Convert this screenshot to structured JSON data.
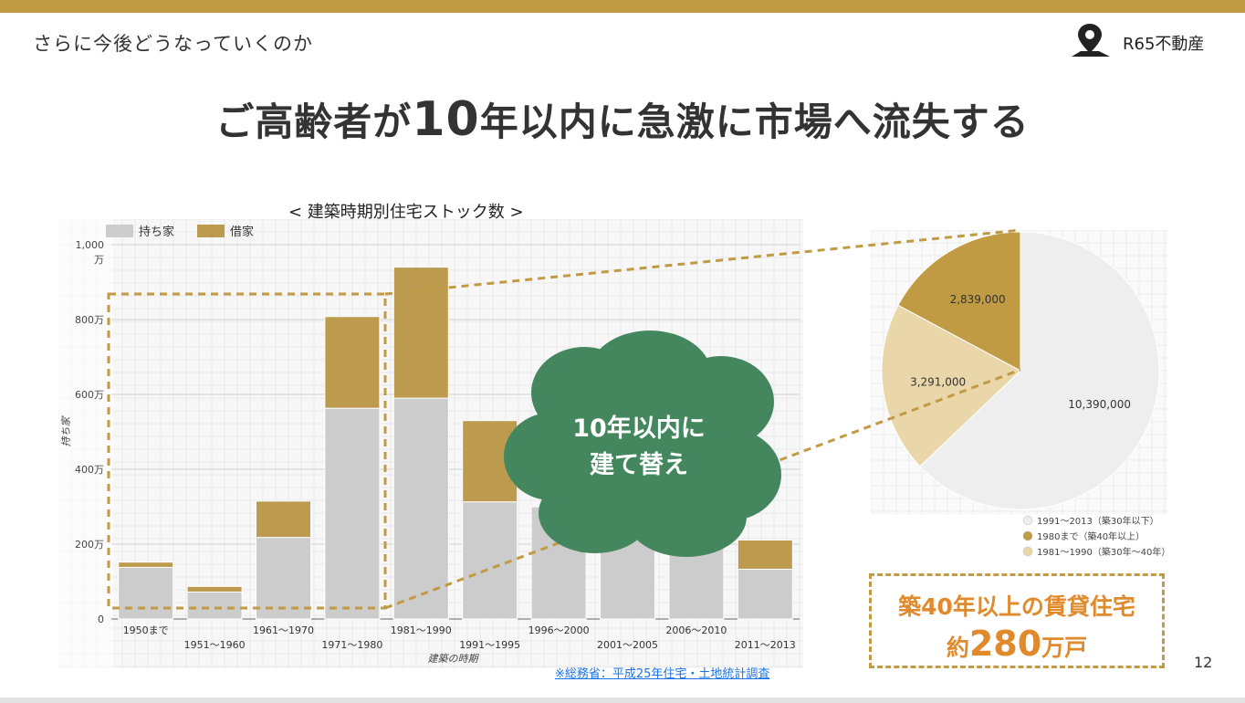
{
  "header": {
    "section_title": "さらに今後どうなっていくのか",
    "brand": "R65不動産"
  },
  "headline": {
    "part1": "ご高齢者が",
    "num": "10",
    "part2": "年以内に急激に市場へ流失する"
  },
  "chart_title": "< 建築時期別住宅ストック数 >",
  "chart_data": [
    {
      "type": "bar",
      "stacked": true,
      "title": "< 建築時期別住宅ストック数 >",
      "xlabel": "建築の時期",
      "ylabel": "持ち家",
      "ylim": [
        0,
        1000
      ],
      "y_unit": "万",
      "yticks": [
        {
          "value": 0,
          "label": "0"
        },
        {
          "value": 200,
          "label": "200万"
        },
        {
          "value": 400,
          "label": "400万"
        },
        {
          "value": 600,
          "label": "600万"
        },
        {
          "value": 800,
          "label": "800万"
        },
        {
          "value": 1000,
          "label": "1,000\n万"
        }
      ],
      "categories": [
        "1950まで",
        "1951～1960",
        "1961～1970",
        "1971～1980",
        "1981～1990",
        "1991～1995",
        "1996～2000",
        "2001～2005",
        "2006～2010",
        "2011～2013"
      ],
      "series": [
        {
          "name": "持ち家",
          "color": "#cccccc",
          "values": [
            138,
            72,
            218,
            563,
            590,
            313,
            300,
            300,
            290,
            133
          ]
        },
        {
          "name": "借家",
          "color": "#bd9b4e",
          "values": [
            14,
            15,
            97,
            245,
            350,
            217,
            0,
            0,
            0,
            78
          ]
        }
      ],
      "legend": "top-left",
      "grid": true
    },
    {
      "type": "pie",
      "slices": [
        {
          "label": "1991～2013（築30年以下）",
          "value": 10390000,
          "value_label": "10,390,000",
          "color": "#eeeeee"
        },
        {
          "label": "1980まで（築40年以上）",
          "value": 2839000,
          "value_label": "2,839,000",
          "color": "#c19a44"
        },
        {
          "label": "1981～1990（築30年～40年）",
          "value": 3291000,
          "value_label": "3,291,000",
          "color": "#e9d7a9"
        }
      ],
      "legend": "bottom",
      "grid": true
    }
  ],
  "cloud": {
    "line1": "10年以内に",
    "line2": "建て替え",
    "color": "#44875f"
  },
  "callout": {
    "line1": "築40年以上の賃貸住宅",
    "prefix": "約",
    "num": "280",
    "suffix": "万戸"
  },
  "source": "※総務省：平成25年住宅・土地統計調査",
  "page_number": "12",
  "colors": {
    "accent": "#c19a44",
    "callout_text": "#e08a2c",
    "link": "#1a73e8"
  }
}
